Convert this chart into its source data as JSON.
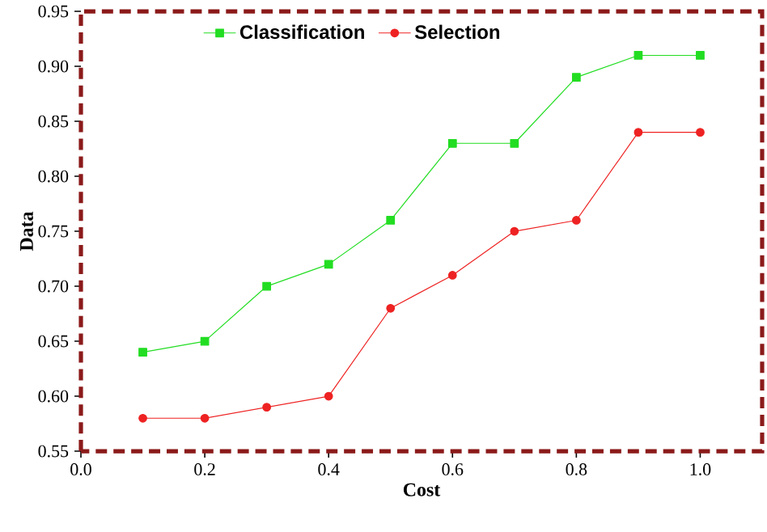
{
  "chart_data": {
    "type": "line",
    "xlabel": "Cost",
    "ylabel": "Data",
    "x": [
      0.1,
      0.2,
      0.3,
      0.4,
      0.5,
      0.6,
      0.7,
      0.8,
      0.9,
      1.0
    ],
    "series": [
      {
        "name": "Classification",
        "color": "#22dd22",
        "marker": "square",
        "values": [
          0.64,
          0.65,
          0.7,
          0.72,
          0.76,
          0.83,
          0.83,
          0.89,
          0.91,
          0.91
        ]
      },
      {
        "name": "Selection",
        "color": "#ee2222",
        "marker": "circle",
        "values": [
          0.58,
          0.58,
          0.59,
          0.6,
          0.68,
          0.71,
          0.75,
          0.76,
          0.84,
          0.84
        ]
      }
    ],
    "xlim": [
      0.0,
      1.1
    ],
    "ylim": [
      0.55,
      0.95
    ],
    "xticks": [
      {
        "value": 0.0,
        "label": "0.0"
      },
      {
        "value": 0.2,
        "label": "0.2"
      },
      {
        "value": 0.4,
        "label": "0.4"
      },
      {
        "value": 0.6,
        "label": "0.6"
      },
      {
        "value": 0.8,
        "label": "0.8"
      },
      {
        "value": 1.0,
        "label": "1.0"
      }
    ],
    "yticks": [
      {
        "value": 0.55,
        "label": "0.55"
      },
      {
        "value": 0.6,
        "label": "0.60"
      },
      {
        "value": 0.65,
        "label": "0.65"
      },
      {
        "value": 0.7,
        "label": "0.70"
      },
      {
        "value": 0.75,
        "label": "0.75"
      },
      {
        "value": 0.8,
        "label": "0.80"
      },
      {
        "value": 0.85,
        "label": "0.85"
      },
      {
        "value": 0.9,
        "label": "0.90"
      },
      {
        "value": 0.95,
        "label": "0.95"
      }
    ],
    "legend": "top",
    "line_style": "solid",
    "grid": false
  }
}
